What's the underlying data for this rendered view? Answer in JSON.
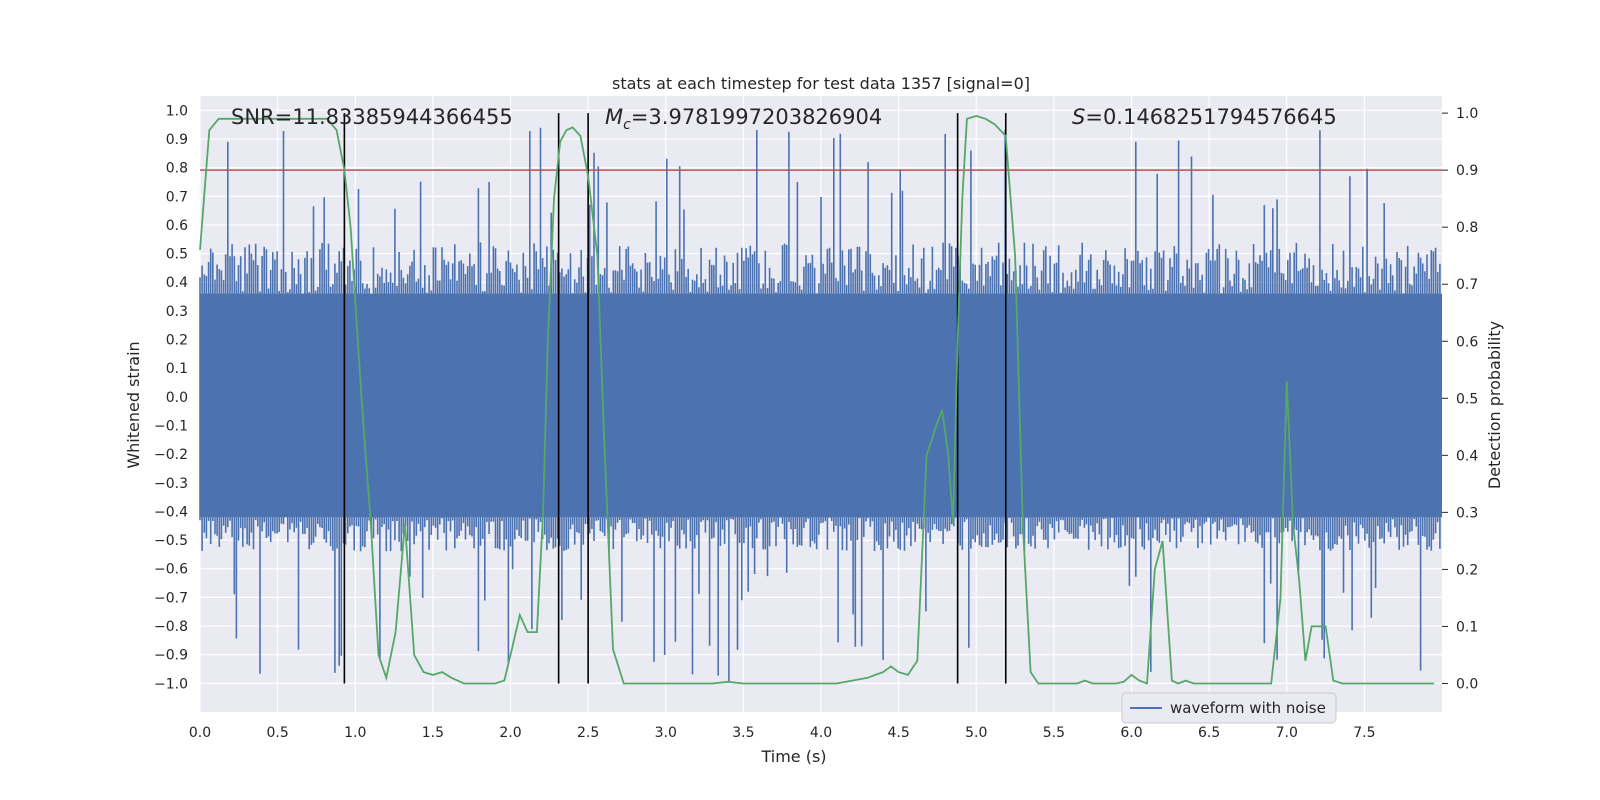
{
  "chart_data": {
    "type": "line",
    "title": "stats at each timestep for test data 1357 [signal=0]",
    "xlabel": "Time (s)",
    "ylabel_left": "Whitened strain",
    "ylabel_right": "Detection probability",
    "xlim": [
      0.0,
      8.0
    ],
    "ylim_left": [
      -1.1,
      1.05
    ],
    "ylim_right": [
      -0.05,
      1.03
    ],
    "x_ticks": [
      0.0,
      0.5,
      1.0,
      1.5,
      2.0,
      2.5,
      3.0,
      3.5,
      4.0,
      4.5,
      5.0,
      5.5,
      6.0,
      6.5,
      7.0,
      7.5
    ],
    "x_tick_labels": [
      "0.0",
      "0.5",
      "1.0",
      "1.5",
      "2.0",
      "2.5",
      "3.0",
      "3.5",
      "4.0",
      "4.5",
      "5.0",
      "5.5",
      "6.0",
      "6.5",
      "7.0",
      "7.5"
    ],
    "y_left_ticks": [
      1.0,
      0.9,
      0.8,
      0.7,
      0.6,
      0.5,
      0.4,
      0.3,
      0.2,
      0.1,
      0.0,
      -0.1,
      -0.2,
      -0.3,
      -0.4,
      -0.5,
      -0.6,
      -0.7,
      -0.8,
      -0.9,
      -1.0
    ],
    "y_left_tick_labels": [
      "1.0",
      "0.9",
      "0.8",
      "0.7",
      "0.6",
      "0.5",
      "0.4",
      "0.3",
      "0.2",
      "0.1",
      "0.0",
      "−0.1",
      "−0.2",
      "−0.3",
      "−0.4",
      "−0.5",
      "−0.6",
      "−0.7",
      "−0.8",
      "−0.9",
      "−1.0"
    ],
    "y_right_ticks": [
      1.0,
      0.9,
      0.8,
      0.7,
      0.6,
      0.5,
      0.4,
      0.3,
      0.2,
      0.1,
      0.0
    ],
    "y_right_tick_labels": [
      "1.0",
      "0.9",
      "0.8",
      "0.7",
      "0.6",
      "0.5",
      "0.4",
      "0.3",
      "0.2",
      "0.1",
      "0.0"
    ],
    "annotations": {
      "snr": "SNR=11.83385944366455",
      "mc_symbol": "M",
      "mc_sub": "c",
      "mc_value": "=3.9781997203826904",
      "s_symbol": "S",
      "s_value": "=0.1468251794576645"
    },
    "legend": {
      "label": "waveform with noise",
      "location": "lower-right"
    },
    "threshold": {
      "value": 0.9,
      "axis": "right",
      "color": "#c44e52"
    },
    "vertical_lines": [
      0.93,
      2.31,
      2.5,
      4.88,
      5.19
    ],
    "waveform": {
      "label": "waveform with noise",
      "color": "#4c72b0",
      "duration": 8.0,
      "bins": 580,
      "core_band": [
        -0.42,
        0.36
      ],
      "peak_max": 0.94,
      "trough_min": -1.0
    },
    "probability": {
      "color": "#55a868",
      "x": [
        0.0,
        0.06,
        0.12,
        0.2,
        0.3,
        0.4,
        0.5,
        0.6,
        0.7,
        0.75,
        0.82,
        0.88,
        0.93,
        0.97,
        1.0,
        1.04,
        1.1,
        1.15,
        1.2,
        1.26,
        1.32,
        1.38,
        1.44,
        1.5,
        1.56,
        1.62,
        1.7,
        1.8,
        1.9,
        1.96,
        2.0,
        2.06,
        2.11,
        2.17,
        2.21,
        2.24,
        2.28,
        2.32,
        2.36,
        2.4,
        2.45,
        2.5,
        2.56,
        2.6,
        2.66,
        2.73,
        2.8,
        2.9,
        3.0,
        3.1,
        3.2,
        3.3,
        3.4,
        3.5,
        3.6,
        3.7,
        3.8,
        3.9,
        4.0,
        4.1,
        4.2,
        4.3,
        4.35,
        4.4,
        4.45,
        4.5,
        4.56,
        4.62,
        4.68,
        4.74,
        4.78,
        4.82,
        4.85,
        4.88,
        4.91,
        4.94,
        5.0,
        5.06,
        5.12,
        5.19,
        5.25,
        5.3,
        5.35,
        5.4,
        5.45,
        5.5,
        5.55,
        5.6,
        5.65,
        5.7,
        5.75,
        5.8,
        5.85,
        5.9,
        5.95,
        6.0,
        6.05,
        6.1,
        6.15,
        6.2,
        6.26,
        6.3,
        6.35,
        6.4,
        6.5,
        6.6,
        6.7,
        6.8,
        6.9,
        6.96,
        7.0,
        7.04,
        7.08,
        7.12,
        7.16,
        7.2,
        7.25,
        7.3,
        7.36,
        7.45,
        7.6,
        7.75,
        7.85,
        7.95
      ],
      "y": [
        0.76,
        0.97,
        0.99,
        0.99,
        0.99,
        0.99,
        0.99,
        0.99,
        0.99,
        0.99,
        0.99,
        0.97,
        0.9,
        0.8,
        0.67,
        0.5,
        0.28,
        0.05,
        0.01,
        0.09,
        0.28,
        0.05,
        0.02,
        0.015,
        0.02,
        0.01,
        0.0,
        0.0,
        0.0,
        0.005,
        0.05,
        0.12,
        0.09,
        0.09,
        0.3,
        0.6,
        0.85,
        0.95,
        0.97,
        0.975,
        0.96,
        0.89,
        0.75,
        0.45,
        0.06,
        0.0,
        0.0,
        0.0,
        0.0,
        0.0,
        0.0,
        0.0,
        0.003,
        0.0,
        0.0,
        0.0,
        0.0,
        0.0,
        0.0,
        0.0,
        0.005,
        0.01,
        0.015,
        0.02,
        0.03,
        0.02,
        0.015,
        0.04,
        0.4,
        0.45,
        0.48,
        0.4,
        0.28,
        0.6,
        0.85,
        0.99,
        0.995,
        0.99,
        0.98,
        0.96,
        0.75,
        0.28,
        0.02,
        0.0,
        0.0,
        0.0,
        0.0,
        0.0,
        0.0,
        0.005,
        0.0,
        0.0,
        0.0,
        0.0,
        0.003,
        0.015,
        0.005,
        0.0,
        0.2,
        0.25,
        0.005,
        0.0,
        0.005,
        0.0,
        0.0,
        0.0,
        0.0,
        0.0,
        0.0,
        0.15,
        0.53,
        0.28,
        0.18,
        0.04,
        0.1,
        0.1,
        0.1,
        0.005,
        0.0,
        0.0,
        0.0,
        0.0,
        0.0,
        0.0
      ]
    }
  }
}
